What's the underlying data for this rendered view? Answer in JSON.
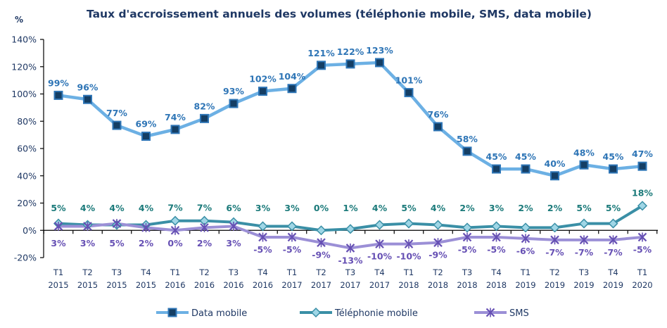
{
  "chart_data": {
    "type": "line",
    "title": "Taux d'accroissement annuels des volumes (téléphonie mobile, SMS, data mobile)",
    "ylabel": "%",
    "xlabel": "",
    "ylim": [
      -20,
      140
    ],
    "yticks": [
      -20,
      0,
      20,
      40,
      60,
      80,
      100,
      120,
      140
    ],
    "ytick_labels": [
      "-20%",
      "0%",
      "20%",
      "40%",
      "60%",
      "80%",
      "100%",
      "120%",
      "140%"
    ],
    "grid": false,
    "legend_position": "bottom",
    "categories": [
      {
        "q": "T1",
        "y": "2015"
      },
      {
        "q": "T2",
        "y": "2015"
      },
      {
        "q": "T3",
        "y": "2015"
      },
      {
        "q": "T4",
        "y": "2015"
      },
      {
        "q": "T1",
        "y": "2016"
      },
      {
        "q": "T2",
        "y": "2016"
      },
      {
        "q": "T3",
        "y": "2016"
      },
      {
        "q": "T4",
        "y": "2016"
      },
      {
        "q": "T1",
        "y": "2017"
      },
      {
        "q": "T2",
        "y": "2017"
      },
      {
        "q": "T3",
        "y": "2017"
      },
      {
        "q": "T4",
        "y": "2017"
      },
      {
        "q": "T1",
        "y": "2018"
      },
      {
        "q": "T2",
        "y": "2018"
      },
      {
        "q": "T3",
        "y": "2018"
      },
      {
        "q": "T4",
        "y": "2018"
      },
      {
        "q": "T1",
        "y": "2019"
      },
      {
        "q": "T2",
        "y": "2019"
      },
      {
        "q": "T3",
        "y": "2019"
      },
      {
        "q": "T4",
        "y": "2019"
      },
      {
        "q": "T1",
        "y": "2020"
      }
    ],
    "series": [
      {
        "name": "Data mobile",
        "key": "data",
        "color": "#6cb0e4",
        "marker": "square",
        "marker_fill": "#143e64",
        "marker_stroke": "#2e75b6",
        "label_color": "#2e75b6",
        "label_position": "above",
        "values": [
          99,
          96,
          77,
          69,
          74,
          82,
          93,
          102,
          104,
          121,
          122,
          123,
          101,
          76,
          58,
          45,
          45,
          40,
          48,
          45,
          47
        ]
      },
      {
        "name": "Téléphonie mobile",
        "key": "tel",
        "color": "#3a8fa6",
        "marker": "diamond",
        "marker_fill": "#9fd6e6",
        "marker_stroke": "#3a8fa6",
        "label_color": "#1b7a7a",
        "label_position": "above",
        "values": [
          5,
          4,
          4,
          4,
          7,
          7,
          6,
          3,
          3,
          0,
          1,
          4,
          5,
          4,
          2,
          3,
          2,
          2,
          5,
          5,
          18
        ]
      },
      {
        "name": "SMS",
        "key": "sms",
        "color": "#9b8fd6",
        "marker": "x-star",
        "marker_fill": "#6650b4",
        "marker_stroke": "#6650b4",
        "label_color": "#6650b4",
        "label_position": "below",
        "values": [
          3,
          3,
          5,
          2,
          0,
          2,
          3,
          -5,
          -5,
          -9,
          -13,
          -10,
          -10,
          -9,
          -5,
          -5,
          -6,
          -7,
          -7,
          -7,
          -5
        ]
      }
    ]
  }
}
